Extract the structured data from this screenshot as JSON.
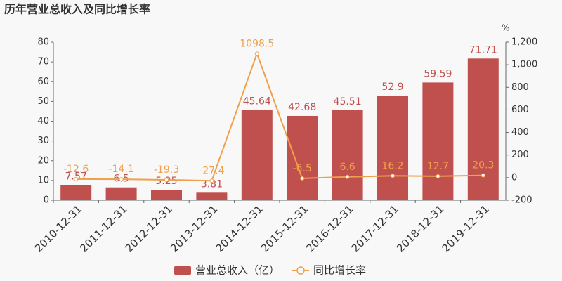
{
  "chart_data": {
    "type": "bar",
    "title": "历年营业总收入及同比增长率",
    "y2_unit": "%",
    "categories": [
      "2010-12-31",
      "2011-12-31",
      "2012-12-31",
      "2013-12-31",
      "2014-12-31",
      "2015-12-31",
      "2016-12-31",
      "2017-12-31",
      "2018-12-31",
      "2019-12-31"
    ],
    "series": [
      {
        "name": "营业总收入（亿）",
        "type": "bar",
        "color": "#c0504d",
        "values": [
          7.57,
          6.5,
          5.25,
          3.81,
          45.64,
          42.68,
          45.51,
          52.9,
          59.59,
          71.71
        ]
      },
      {
        "name": "同比增长率",
        "type": "line",
        "axis": "y2",
        "color": "#f0a04b",
        "values": [
          -12.6,
          -14.1,
          -19.3,
          -27.4,
          1098.5,
          -6.5,
          6.6,
          16.2,
          12.7,
          20.3
        ]
      }
    ],
    "ylim": [
      0,
      80
    ],
    "yticks": [
      0,
      10,
      20,
      30,
      40,
      50,
      60,
      70,
      80
    ],
    "y2lim": [
      -200,
      1200
    ],
    "y2ticks": [
      -200,
      0,
      200,
      400,
      600,
      800,
      {
        "value": 1000,
        "label": "1,000"
      },
      {
        "value": 1200,
        "label": "1,200"
      }
    ],
    "legend": "bottom"
  }
}
